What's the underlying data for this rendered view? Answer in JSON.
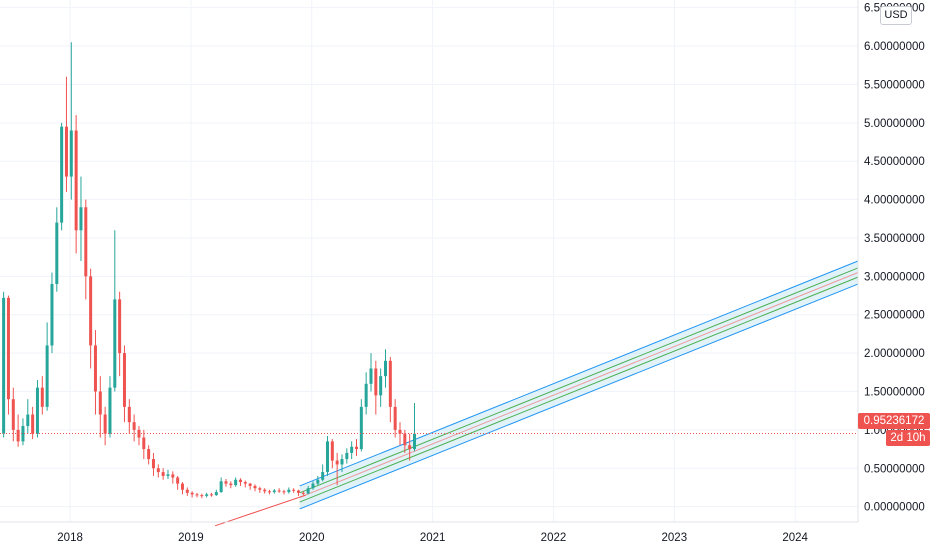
{
  "header": {
    "currency": "USD"
  },
  "price_scale": {
    "last_price": "0.95236172",
    "countdown": "2d 10h"
  },
  "colors": {
    "up": "#26a69a",
    "down": "#ef5350",
    "grid": "#f0f3fa",
    "channel_fill": "#c8e8f4",
    "channel_outer": "#2196f3",
    "channel_inner": "#4caf50",
    "channel_mid": "#ef9a9a",
    "trend_line": "#ef5350"
  },
  "chart_data": {
    "type": "candlestick",
    "y_axis": {
      "range": [
        -0.2,
        6.6
      ],
      "ticks": [
        "0.00000000",
        "0.50000000",
        "1.00000000",
        "1.50000000",
        "2.00000000",
        "2.50000000",
        "3.00000000",
        "3.50000000",
        "4.00000000",
        "4.50000000",
        "5.00000000",
        "5.50000000",
        "6.00000000",
        "6.50000000"
      ],
      "tick_values": [
        0,
        0.5,
        1,
        1.5,
        2,
        2.5,
        3,
        3.5,
        4,
        4.5,
        5,
        5.5,
        6,
        6.5
      ]
    },
    "x_axis": {
      "range": [
        2017.42,
        2024.52
      ],
      "ticks": [
        "2018",
        "2019",
        "2020",
        "2021",
        "2022",
        "2023",
        "2024"
      ],
      "tick_values": [
        2018,
        2019,
        2020,
        2021,
        2022,
        2023,
        2024
      ]
    },
    "grid": true,
    "last_price": 0.95236172,
    "trend_line": {
      "from": [
        2019.2,
        -0.25
      ],
      "to": [
        2019.95,
        0.15
      ]
    },
    "regression_channel": {
      "from_time": 2019.9,
      "to_time": 2024.52,
      "mid_start": 0.12,
      "mid_end": 3.05,
      "inner_offset": 0.06,
      "outer_offset": 0.15
    },
    "series": [
      {
        "name": "",
        "points": [
          [
            2017.45,
            0.95,
            2.72,
            2.8,
            0.9
          ],
          [
            2017.49,
            2.72,
            1.4,
            2.75,
            1.2
          ],
          [
            2017.53,
            1.4,
            1.0,
            1.55,
            0.85
          ],
          [
            2017.57,
            1.0,
            0.85,
            1.2,
            0.78
          ],
          [
            2017.61,
            0.85,
            1.05,
            1.15,
            0.8
          ],
          [
            2017.65,
            1.05,
            1.2,
            1.4,
            0.95
          ],
          [
            2017.69,
            1.2,
            0.95,
            1.3,
            0.88
          ],
          [
            2017.73,
            0.95,
            1.55,
            1.65,
            0.9
          ],
          [
            2017.77,
            1.55,
            1.3,
            1.7,
            1.2
          ],
          [
            2017.81,
            1.3,
            2.1,
            2.4,
            1.25
          ],
          [
            2017.85,
            2.1,
            2.9,
            3.05,
            2.0
          ],
          [
            2017.89,
            2.9,
            3.7,
            3.9,
            2.8
          ],
          [
            2017.93,
            3.7,
            4.95,
            5.0,
            3.6
          ],
          [
            2017.97,
            4.95,
            4.3,
            5.6,
            4.1
          ],
          [
            2018.01,
            4.3,
            4.9,
            6.05,
            4.0
          ],
          [
            2018.05,
            4.9,
            3.6,
            5.1,
            3.3
          ],
          [
            2018.09,
            3.6,
            3.9,
            4.3,
            3.2
          ],
          [
            2018.13,
            3.9,
            3.0,
            4.0,
            2.7
          ],
          [
            2018.17,
            3.0,
            2.1,
            3.1,
            1.8
          ],
          [
            2018.21,
            2.1,
            1.5,
            2.3,
            1.2
          ],
          [
            2018.25,
            1.5,
            1.2,
            1.7,
            0.9
          ],
          [
            2018.29,
            1.2,
            0.95,
            1.3,
            0.8
          ],
          [
            2018.33,
            0.95,
            1.55,
            1.7,
            0.9
          ],
          [
            2018.37,
            1.55,
            2.7,
            3.6,
            1.5
          ],
          [
            2018.41,
            2.7,
            2.0,
            2.8,
            1.7
          ],
          [
            2018.45,
            2.0,
            1.3,
            2.1,
            1.1
          ],
          [
            2018.49,
            1.3,
            1.1,
            1.4,
            0.95
          ],
          [
            2018.53,
            1.1,
            1.0,
            1.2,
            0.85
          ],
          [
            2018.57,
            1.0,
            0.9,
            1.05,
            0.8
          ],
          [
            2018.61,
            0.9,
            0.75,
            1.0,
            0.62
          ],
          [
            2018.65,
            0.75,
            0.62,
            0.8,
            0.55
          ],
          [
            2018.69,
            0.62,
            0.5,
            0.7,
            0.4
          ],
          [
            2018.73,
            0.5,
            0.45,
            0.55,
            0.38
          ],
          [
            2018.77,
            0.45,
            0.4,
            0.5,
            0.35
          ],
          [
            2018.81,
            0.4,
            0.42,
            0.48,
            0.36
          ],
          [
            2018.85,
            0.42,
            0.38,
            0.46,
            0.3
          ],
          [
            2018.89,
            0.38,
            0.3,
            0.4,
            0.22
          ],
          [
            2018.93,
            0.3,
            0.22,
            0.32,
            0.16
          ],
          [
            2018.97,
            0.22,
            0.18,
            0.25,
            0.14
          ],
          [
            2019.01,
            0.18,
            0.16,
            0.2,
            0.12
          ],
          [
            2019.05,
            0.16,
            0.15,
            0.18,
            0.12
          ],
          [
            2019.09,
            0.15,
            0.14,
            0.17,
            0.11
          ],
          [
            2019.13,
            0.14,
            0.16,
            0.18,
            0.12
          ],
          [
            2019.17,
            0.16,
            0.15,
            0.18,
            0.13
          ],
          [
            2019.21,
            0.15,
            0.19,
            0.22,
            0.14
          ],
          [
            2019.25,
            0.19,
            0.33,
            0.38,
            0.18
          ],
          [
            2019.29,
            0.33,
            0.3,
            0.36,
            0.26
          ],
          [
            2019.33,
            0.3,
            0.28,
            0.33,
            0.24
          ],
          [
            2019.37,
            0.28,
            0.35,
            0.38,
            0.26
          ],
          [
            2019.41,
            0.35,
            0.32,
            0.37,
            0.27
          ],
          [
            2019.45,
            0.32,
            0.3,
            0.34,
            0.25
          ],
          [
            2019.49,
            0.3,
            0.27,
            0.31,
            0.22
          ],
          [
            2019.53,
            0.27,
            0.24,
            0.29,
            0.2
          ],
          [
            2019.57,
            0.24,
            0.22,
            0.26,
            0.18
          ],
          [
            2019.61,
            0.22,
            0.2,
            0.24,
            0.17
          ],
          [
            2019.65,
            0.2,
            0.19,
            0.22,
            0.16
          ],
          [
            2019.69,
            0.19,
            0.21,
            0.23,
            0.17
          ],
          [
            2019.73,
            0.21,
            0.2,
            0.24,
            0.18
          ],
          [
            2019.77,
            0.2,
            0.19,
            0.22,
            0.16
          ],
          [
            2019.81,
            0.19,
            0.22,
            0.25,
            0.17
          ],
          [
            2019.85,
            0.22,
            0.21,
            0.24,
            0.18
          ],
          [
            2019.89,
            0.21,
            0.18,
            0.22,
            0.14
          ],
          [
            2019.93,
            0.18,
            0.17,
            0.2,
            0.15
          ],
          [
            2019.97,
            0.17,
            0.24,
            0.27,
            0.16
          ],
          [
            2020.01,
            0.24,
            0.3,
            0.33,
            0.22
          ],
          [
            2020.05,
            0.3,
            0.35,
            0.4,
            0.28
          ],
          [
            2020.09,
            0.35,
            0.45,
            0.55,
            0.33
          ],
          [
            2020.13,
            0.45,
            0.85,
            0.92,
            0.4
          ],
          [
            2020.17,
            0.85,
            0.6,
            0.88,
            0.5
          ],
          [
            2020.21,
            0.6,
            0.55,
            0.7,
            0.28
          ],
          [
            2020.25,
            0.55,
            0.62,
            0.68,
            0.45
          ],
          [
            2020.29,
            0.62,
            0.7,
            0.76,
            0.56
          ],
          [
            2020.33,
            0.7,
            0.78,
            0.85,
            0.62
          ],
          [
            2020.37,
            0.78,
            0.75,
            0.88,
            0.66
          ],
          [
            2020.41,
            0.75,
            1.3,
            1.4,
            0.72
          ],
          [
            2020.45,
            1.3,
            1.6,
            1.75,
            1.2
          ],
          [
            2020.49,
            1.6,
            1.8,
            2.0,
            1.5
          ],
          [
            2020.53,
            1.8,
            1.45,
            1.9,
            1.2
          ],
          [
            2020.57,
            1.45,
            1.7,
            1.8,
            1.3
          ],
          [
            2020.61,
            1.7,
            1.9,
            2.05,
            1.55
          ],
          [
            2020.65,
            1.9,
            1.3,
            1.95,
            1.1
          ],
          [
            2020.69,
            1.3,
            1.0,
            1.4,
            0.9
          ],
          [
            2020.73,
            1.0,
            0.95,
            1.1,
            0.8
          ],
          [
            2020.77,
            0.95,
            0.8,
            1.0,
            0.7
          ],
          [
            2020.81,
            0.8,
            0.75,
            0.95,
            0.6
          ],
          [
            2020.85,
            0.75,
            0.95,
            1.35,
            0.72
          ]
        ]
      }
    ]
  }
}
